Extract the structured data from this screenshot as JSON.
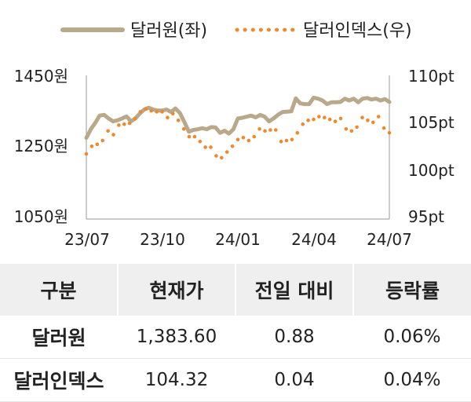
{
  "chart_data": {
    "type": "line",
    "legend": {
      "placement": "top",
      "items": [
        "달러원(좌)",
        "달러인덱스(우)"
      ]
    },
    "x_ticks": [
      "23/07",
      "23/10",
      "24/01",
      "24/04",
      "24/07"
    ],
    "y_left": {
      "ticks": [
        "1450원",
        "1250원",
        "1050원"
      ],
      "range": [
        1050,
        1450
      ]
    },
    "y_right": {
      "ticks": [
        "110pt",
        "105pt",
        "100pt",
        "95pt"
      ],
      "range": [
        95,
        110
      ]
    },
    "series": [
      {
        "name": "달러원(좌)",
        "axis": "left",
        "color": "#b9a98a",
        "style": "solid",
        "values": [
          1276,
          1300,
          1318,
          1338,
          1340,
          1330,
          1322,
          1325,
          1330,
          1336,
          1322,
          1330,
          1344,
          1355,
          1360,
          1355,
          1352,
          1352,
          1355,
          1348,
          1358,
          1345,
          1320,
          1293,
          1298,
          1300,
          1303,
          1300,
          1306,
          1305,
          1290,
          1296,
          1288,
          1300,
          1330,
          1332,
          1335,
          1338,
          1333,
          1340,
          1335,
          1322,
          1330,
          1340,
          1348,
          1349,
          1350,
          1386,
          1372,
          1370,
          1370,
          1388,
          1385,
          1380,
          1370,
          1375,
          1375,
          1376,
          1385,
          1380,
          1385,
          1375,
          1385,
          1387,
          1383,
          1385,
          1380,
          1384,
          1376
        ]
      },
      {
        "name": "달러인덱스(우)",
        "axis": "right",
        "color": "#ee8a2c",
        "style": "dotted",
        "values": [
          101.8,
          102.6,
          102.8,
          103.2,
          104.2,
          103.8,
          104.8,
          104.9,
          105.0,
          105.5,
          106.2,
          106.5,
          106.3,
          106.2,
          106.2,
          105.6,
          106.0,
          105.3,
          104.4,
          103.6,
          103.6,
          103.1,
          102.5,
          102.5,
          101.6,
          101.4,
          102.0,
          102.6,
          103.3,
          103.5,
          103.2,
          103.6,
          104.4,
          104.2,
          104.3,
          104.3,
          103.1,
          103.2,
          103.3,
          104.0,
          104.9,
          105.3,
          105.4,
          105.7,
          105.6,
          105.4,
          105.2,
          105.5,
          104.4,
          104.2,
          104.6,
          105.6,
          105.3,
          105.1,
          105.7,
          104.5,
          104.0
        ]
      }
    ]
  },
  "table": {
    "headers": [
      "구분",
      "현재가",
      "전일 대비",
      "등락률"
    ],
    "rows": [
      [
        "달러원",
        "1,383.60",
        "0.88",
        "0.06%"
      ],
      [
        "달러인덱스",
        "104.32",
        "0.04",
        "0.04%"
      ]
    ]
  }
}
